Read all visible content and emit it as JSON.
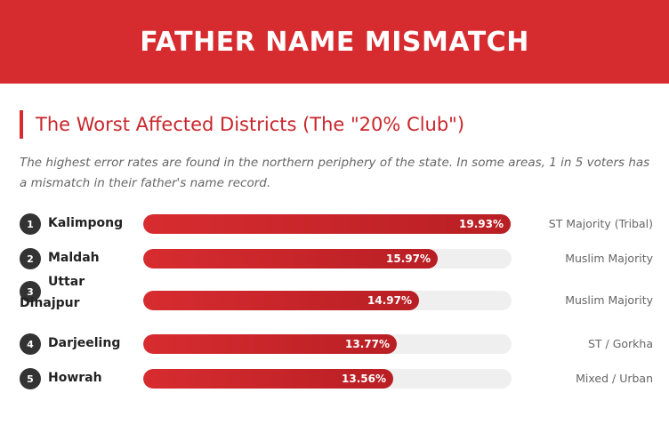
{
  "header": {
    "title": "FATHER NAME MISMATCH"
  },
  "section": {
    "title": "The Worst Affected Districts (The \"20% Club\")",
    "description": "The highest error rates are found in the northern periphery of the state. In some areas, 1 in 5 voters has a mismatch in their father's name record."
  },
  "colors": {
    "accent": "#d62b2f",
    "bar_start": "#d72c30",
    "bar_end": "#b81f24",
    "track": "#efefef",
    "rank_badge": "#333333"
  },
  "chart_data": {
    "type": "bar",
    "orientation": "horizontal",
    "xlim": [
      0,
      20
    ],
    "ranks": [
      "1",
      "2",
      "3",
      "4",
      "5"
    ],
    "categories": [
      "Kalimpong",
      "Maldah",
      "Uttar Dinajpur",
      "Darjeeling",
      "Howrah"
    ],
    "values": [
      19.93,
      15.97,
      14.97,
      13.77,
      13.56
    ],
    "value_labels": [
      "19.93%",
      "15.97%",
      "14.97%",
      "13.77%",
      "13.56%"
    ],
    "annotations": [
      "ST Majority (Tribal)",
      "Muslim Majority",
      "Muslim Majority",
      "ST / Gorkha",
      "Mixed / Urban"
    ]
  }
}
